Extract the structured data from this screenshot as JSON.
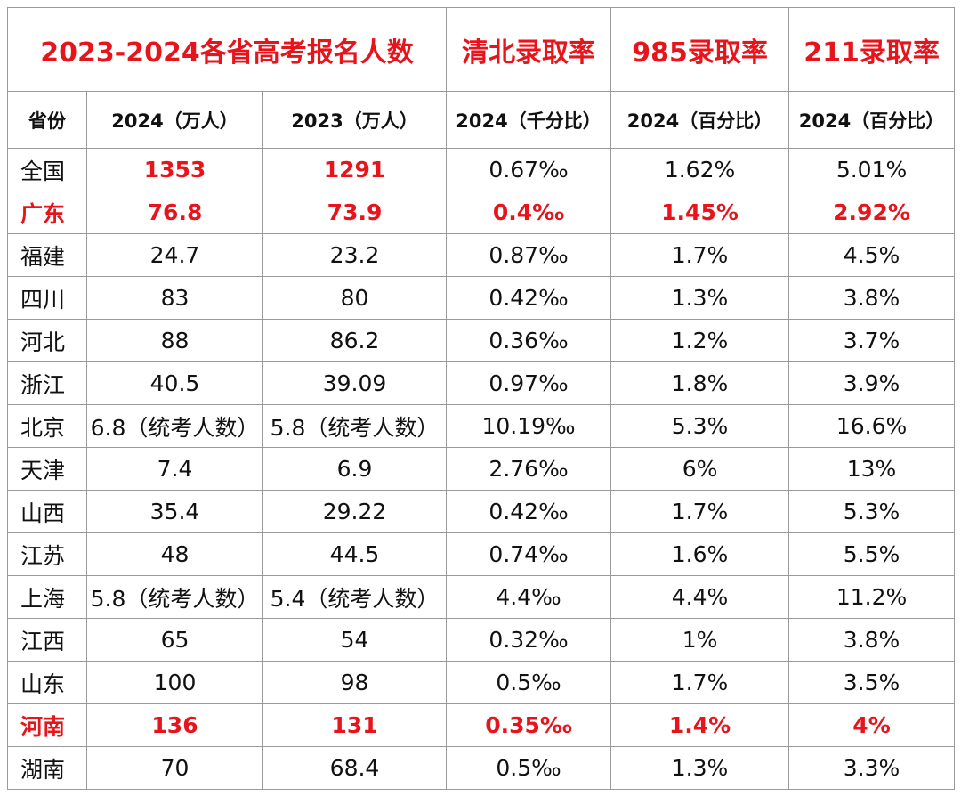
{
  "header": {
    "title": "2023-2024各省高考报名人数",
    "columns": [
      "清北录取率",
      "985录取率",
      "211录取率"
    ]
  },
  "table": {
    "columns": [
      "省份",
      "2024（万人）",
      "2023（万人）",
      "2024（千分比）",
      "2024（百分比）",
      "2024（百分比）"
    ],
    "rows": [
      [
        "全国",
        "1353",
        "1291",
        "0.67‰",
        "1.62%",
        "5.01%"
      ],
      [
        "广东",
        "76.8",
        "73.9",
        "0.4‰",
        "1.45%",
        "2.92%"
      ],
      [
        "福建",
        "24.7",
        "23.2",
        "0.87‰",
        "1.7%",
        "4.5%"
      ],
      [
        "四川",
        "83",
        "80",
        "0.42‰",
        "1.3%",
        "3.8%"
      ],
      [
        "河北",
        "88",
        "86.2",
        "0.36‰",
        "1.2%",
        "3.7%"
      ],
      [
        "浙江",
        "40.5",
        "39.09",
        "0.97‰",
        "1.8%",
        "3.9%"
      ],
      [
        "北京",
        "6.8（统考人数）",
        "5.8（统考人数）",
        "10.19‰",
        "5.3%",
        "16.6%"
      ],
      [
        "天津",
        "7.4",
        "6.9",
        "2.76‰",
        "6%",
        "13%"
      ],
      [
        "山西",
        "35.4",
        "29.22",
        "0.42‰",
        "1.7%",
        "5.3%"
      ],
      [
        "江苏",
        "48",
        "44.5",
        "0.74‰",
        "1.6%",
        "5.5%"
      ],
      [
        "上海",
        "5.8（统考人数）",
        "5.4（统考人数）",
        "4.4‰",
        "4.4%",
        "11.2%"
      ],
      [
        "江西",
        "65",
        "54",
        "0.32‰",
        "1%",
        "3.8%"
      ],
      [
        "山东",
        "100",
        "98",
        "0.5‰",
        "1.7%",
        "3.5%"
      ],
      [
        "河南",
        "136",
        "131",
        "0.35‰",
        "1.4%",
        "4%"
      ],
      [
        "湖南",
        "70",
        "68.4",
        "0.5‰",
        "1.3%",
        "3.3%"
      ]
    ]
  }
}
